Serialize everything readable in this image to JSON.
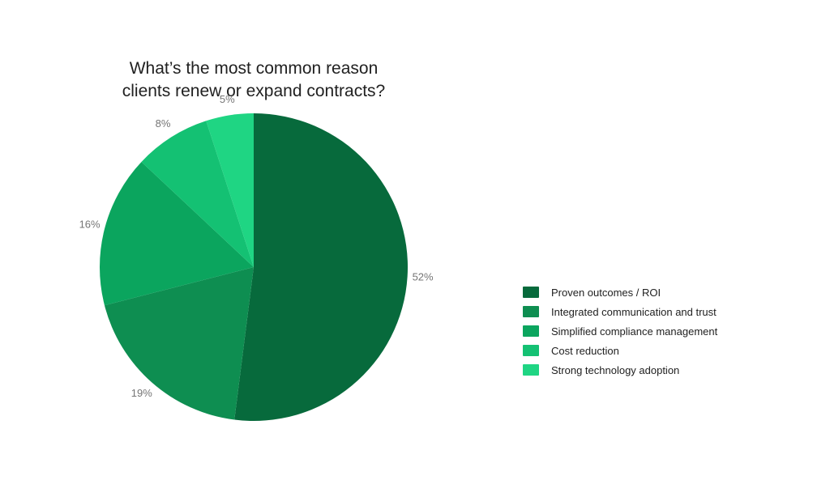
{
  "chart_data": {
    "type": "pie",
    "title": "What’s the most common reason clients renew or expand contracts?",
    "title_lines": [
      "What’s the most common reason",
      "clients renew or expand contracts?"
    ],
    "title_color": "#212121",
    "background_color": "#ffffff",
    "start_angle_deg": 0,
    "direction": "clockwise",
    "legend_position": "right",
    "value_label_position": "outside",
    "value_label_color": "#757575",
    "legend_text_color": "#212121",
    "slices": [
      {
        "label": "Proven outcomes / ROI",
        "value": 52,
        "pct_label": "52%",
        "color": "#076A3C"
      },
      {
        "label": "Integrated communication and trust",
        "value": 19,
        "pct_label": "19%",
        "color": "#0E8E51"
      },
      {
        "label": "Simplified compliance management",
        "value": 16,
        "pct_label": "16%",
        "color": "#0BA55E"
      },
      {
        "label": "Cost reduction",
        "value": 8,
        "pct_label": "8%",
        "color": "#14C173"
      },
      {
        "label": "Strong technology adoption",
        "value": 5,
        "pct_label": "5%",
        "color": "#1FD583"
      }
    ]
  }
}
